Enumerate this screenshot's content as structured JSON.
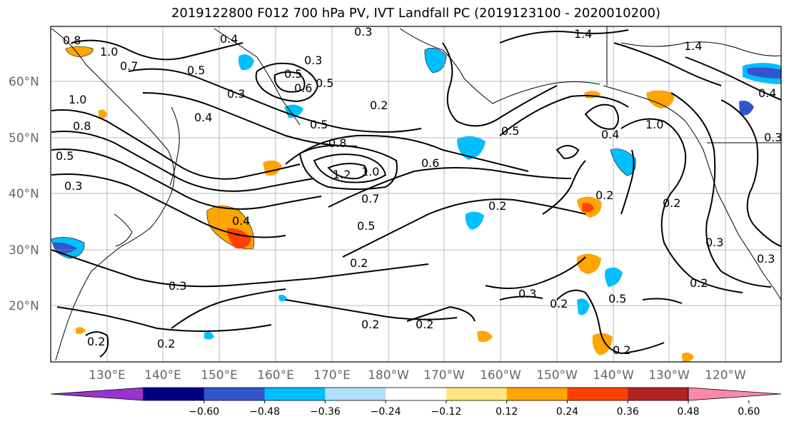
{
  "title": "2019122800 F012 700 hPa PV, IVT Landfall PC (2019123100 - 2020010200)",
  "lat_labels": [
    "60°N",
    "50°N",
    "40°N",
    "30°N",
    "20°N"
  ],
  "lon_labels": [
    "130°E",
    "140°E",
    "150°E",
    "160°E",
    "170°E",
    "180°W",
    "170°W",
    "160°W",
    "150°W",
    "140°W",
    "130°W",
    "120°W"
  ],
  "contour_labels": [
    "0.8",
    "1.0",
    "0.7",
    "0.4",
    "0.3",
    "0.3",
    "0.5",
    "0.3",
    "0.5",
    "0.6",
    "0.5",
    "1.0",
    "0.4",
    "0.8",
    "0.5",
    "0.3",
    "0.5",
    "0.8",
    "1.2",
    "1.0",
    "0.6",
    "0.4",
    "0.7",
    "0.5",
    "0.2",
    "0.2",
    "0.3",
    "0.2",
    "0.2",
    "0.2",
    "0.3",
    "0.2",
    "0.2",
    "0.5",
    "0.2",
    "0.4",
    "0.2",
    "0.2",
    "1.4",
    "1.4",
    "0.5",
    "0.4",
    "1.0",
    "0.3",
    "0.3",
    "0.2",
    "0.3",
    "0.2"
  ],
  "colorbar": {
    "ticks": [
      "−0.60",
      "−0.48",
      "−0.36",
      "−0.24",
      "−0.12",
      "0.12",
      "0.24",
      "0.36",
      "0.48",
      "0.60"
    ],
    "colors": [
      "#9933cc",
      "#000080",
      "#3355cc",
      "#00bfff",
      "#b3e0ff",
      "#ffffff",
      "#ffe680",
      "#ffa500",
      "#ff4000",
      "#b22222",
      "#ff88aa"
    ]
  }
}
